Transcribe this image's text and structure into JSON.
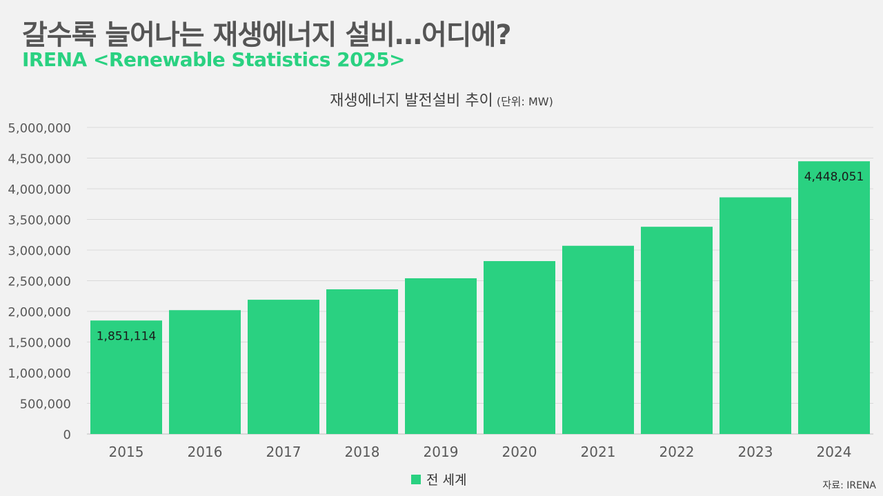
{
  "headline": "갈수록 늘어나는 재생에너지 설비…어디에?",
  "subheadline": "IRENA <Renewable Statistics 2025>",
  "colors": {
    "accent": "#2ad181",
    "bar": "#2ad181",
    "headline": "#555555",
    "grid": "#d9d9d9"
  },
  "chart_data": {
    "type": "bar",
    "title": "재생에너지 발전설비 추이",
    "title_unit": "(단위: MW)",
    "categories": [
      "2015",
      "2016",
      "2017",
      "2018",
      "2019",
      "2020",
      "2021",
      "2022",
      "2023",
      "2024"
    ],
    "series": [
      {
        "name": "전 세계",
        "values": [
          1851114,
          2020000,
          2190000,
          2360000,
          2540000,
          2820000,
          3070000,
          3380000,
          3860000,
          4448051
        ]
      }
    ],
    "data_labels": [
      {
        "index": 0,
        "text": "1,851,114"
      },
      {
        "index": 9,
        "text": "4,448,051"
      }
    ],
    "y_ticks": [
      "0",
      "500,000",
      "1,000,000",
      "1,500,000",
      "2,000,000",
      "2,500,000",
      "3,000,000",
      "3,500,000",
      "4,000,000",
      "4,500,000",
      "5,000,000"
    ],
    "ylim": [
      0,
      5000000
    ],
    "grid": true,
    "legend_position": "bottom"
  },
  "legend_label": "전 세계",
  "source": "자료: IRENA"
}
